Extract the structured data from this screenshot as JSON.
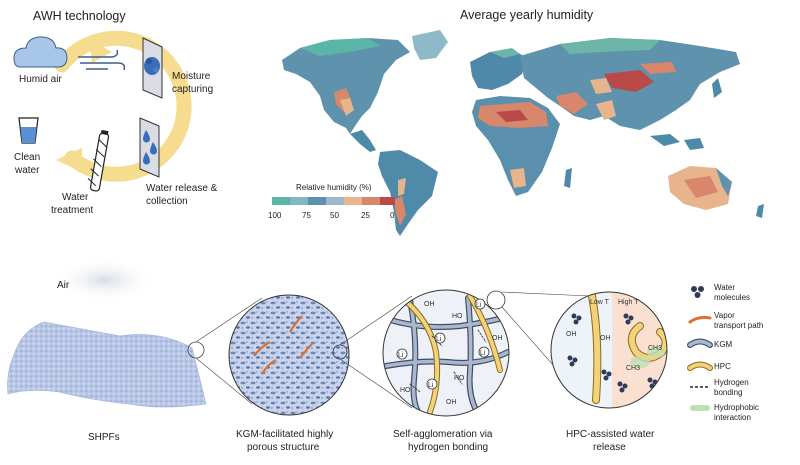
{
  "awh": {
    "title": "AWH technology",
    "humid_air": "Humid air",
    "moisture_line1": "Moisture",
    "moisture_line2": "capturing",
    "release_line1": "Water release &",
    "release_line2": "collection",
    "treatment_line1": "Water",
    "treatment_line2": "treatment",
    "clean_line1": "Clean",
    "clean_line2": "water"
  },
  "map": {
    "title": "Average yearly humidity",
    "legend_title": "Relative humidity (%)",
    "ticks": [
      "100",
      "75",
      "50",
      "25",
      "0"
    ],
    "scale_colors": [
      "#5bb5a6",
      "#7fb7c3",
      "#5d8fae",
      "#9bb8cc",
      "#e7b48d",
      "#d9876c",
      "#b94a48"
    ]
  },
  "process": {
    "air_label": "Air",
    "shpf_label": "SHPFs",
    "panel1_line1": "KGM-facilitated highly",
    "panel1_line2": "porous structure",
    "panel2_line1": "Self-agglomeration via",
    "panel2_line2": "hydrogen bonding",
    "panel3_line1": "HPC-assisted water",
    "panel3_line2": "release",
    "low_t": "Low T",
    "high_t": "High T",
    "oh": "OH",
    "ho": "HO",
    "li": "Li",
    "ch3": "CH3"
  },
  "legend": {
    "water_line1": "Water",
    "water_line2": "molecules",
    "vapor_line1": "Vapor",
    "vapor_line2": "transport path",
    "kgm": "KGM",
    "hpc": "HPC",
    "hbond_line1": "Hydrogen",
    "hbond_line2": "bonding",
    "hydro_line1": "Hydrophobic",
    "hydro_line2": "interaction"
  }
}
